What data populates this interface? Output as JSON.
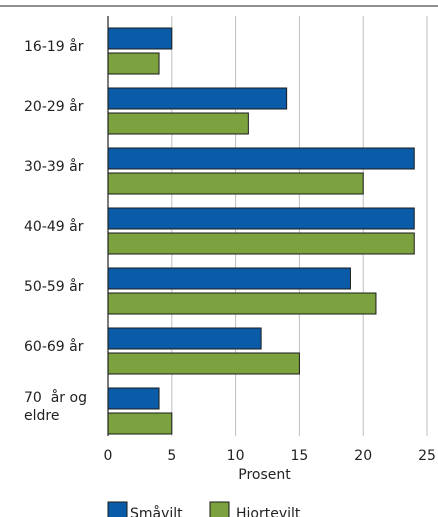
{
  "chart_data": {
    "type": "bar",
    "orientation": "horizontal",
    "categories": [
      [
        "16-19 år"
      ],
      [
        "20-29 år"
      ],
      [
        "30-39 år"
      ],
      [
        "40-49 år"
      ],
      [
        "50-59 år"
      ],
      [
        "60-69 år"
      ],
      [
        "70  år og",
        "eldre"
      ]
    ],
    "series": [
      {
        "name": "Småvilt",
        "color": "#0a5ca8",
        "values": [
          5,
          14,
          24,
          24,
          19,
          12,
          4
        ]
      },
      {
        "name": "Hjortevilt",
        "color": "#7ba23f",
        "values": [
          4,
          11,
          20,
          24,
          21,
          15,
          5
        ]
      }
    ],
    "xlabel": "Prosent",
    "xlim": [
      0,
      25
    ],
    "xticks": [
      0,
      5,
      10,
      15,
      20,
      25
    ],
    "grid": true,
    "legend_position": "bottom"
  }
}
